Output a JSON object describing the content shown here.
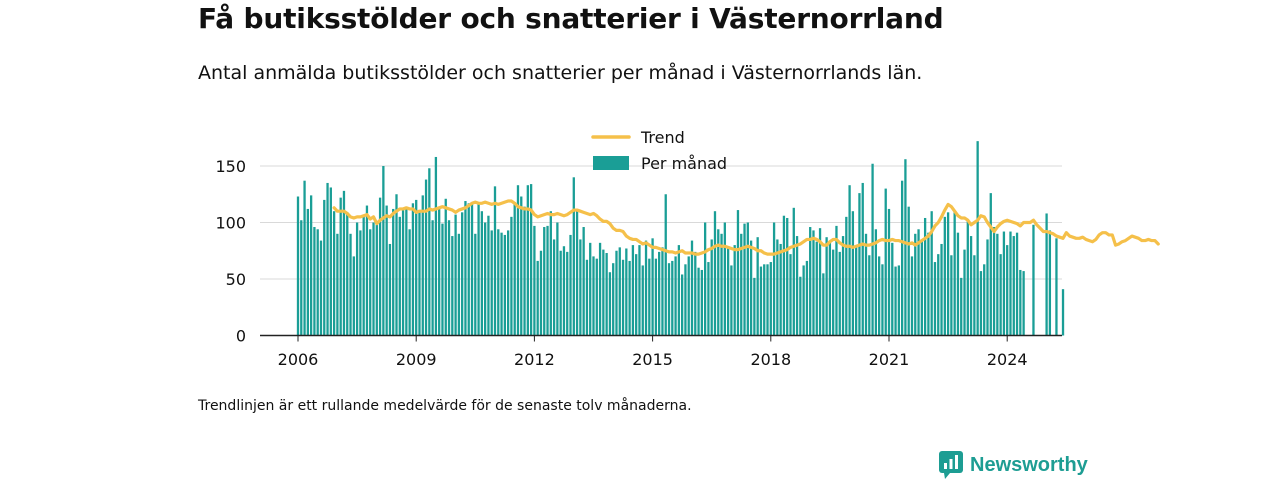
{
  "title": "Få butiksstölder och snatterier i Västernorrland",
  "subtitle": "Antal anmälda butiksstölder och snatterier per månad i Västernorrlands län.",
  "note": "Trendlinjen är ett rullande medelvärde för de senaste tolv månaderna.",
  "brand": "Newsworthy",
  "colors": {
    "bars": "#1a9e96",
    "trend": "#f5c04a",
    "grid": "#d9d9d9",
    "axis": "#222222",
    "brand": "#1d9d93"
  },
  "chart_data": {
    "type": "bar",
    "title": "Få butiksstölder och snatterier i Västernorrland",
    "start": "2006-01",
    "ylim": [
      0,
      175
    ],
    "yticks": [
      0,
      50,
      100,
      150
    ],
    "xticks": [
      "2006",
      "2009",
      "2012",
      "2015",
      "2018",
      "2021",
      "2024"
    ],
    "grid": true,
    "legend": "top-center",
    "series": [
      {
        "name": "Per månad",
        "values": [
          123,
          102,
          137,
          112,
          124,
          96,
          94,
          84,
          120,
          135,
          131,
          110,
          90,
          122,
          128,
          109,
          90,
          70,
          100,
          93,
          105,
          115,
          94,
          100,
          98,
          122,
          150,
          115,
          81,
          112,
          125,
          105,
          111,
          112,
          94,
          117,
          120,
          109,
          124,
          138,
          148,
          102,
          158,
          112,
          99,
          121,
          102,
          88,
          107,
          90,
          109,
          119,
          117,
          118,
          90,
          118,
          110,
          100,
          106,
          93,
          132,
          94,
          91,
          89,
          93,
          105,
          118,
          133,
          123,
          114,
          133,
          134,
          97,
          66,
          75,
          96,
          97,
          110,
          85,
          100,
          75,
          79,
          74,
          89,
          140,
          110,
          85,
          96,
          67,
          82,
          70,
          68,
          82,
          76,
          73,
          56,
          64,
          75,
          78,
          67,
          77,
          66,
          80,
          72,
          80,
          62,
          84,
          68,
          86,
          68,
          74,
          78,
          125,
          64,
          66,
          70,
          80,
          54,
          63,
          70,
          84,
          74,
          60,
          58,
          100,
          65,
          85,
          110,
          94,
          90,
          100,
          79,
          62,
          80,
          111,
          90,
          99,
          100,
          84,
          51,
          87,
          61,
          63,
          63,
          65,
          100,
          85,
          81,
          106,
          104,
          72,
          113,
          88,
          52,
          62,
          66,
          96,
          93,
          83,
          95,
          55,
          87,
          84,
          76,
          97,
          74,
          88,
          105,
          133,
          110,
          80,
          126,
          135,
          90,
          71,
          152,
          94,
          70,
          63,
          130,
          112,
          82,
          61,
          62,
          137,
          156,
          114,
          70,
          90,
          94,
          85,
          104,
          91,
          110,
          65,
          72,
          81,
          105,
          109,
          71,
          110,
          91,
          51,
          76,
          102,
          88,
          71,
          172,
          57,
          63,
          85,
          126,
          96,
          90,
          72,
          92,
          80,
          92,
          88,
          91,
          58,
          57,
          0,
          0,
          98,
          0,
          0,
          0,
          108,
          93,
          0,
          86,
          0,
          41
        ],
        "missing_value_note": ""
      },
      {
        "name": "Trend",
        "values": [
          null,
          null,
          null,
          null,
          null,
          null,
          null,
          null,
          null,
          null,
          null,
          113,
          110,
          110,
          110,
          108,
          105,
          104,
          105,
          105,
          106,
          107,
          103,
          105,
          99,
          102,
          104,
          106,
          105,
          108,
          110,
          112,
          112,
          113,
          112,
          112,
          109,
          110,
          110,
          110,
          112,
          111,
          112,
          113,
          114,
          113,
          112,
          111,
          109,
          111,
          112,
          113,
          115,
          117,
          118,
          117,
          117,
          118,
          117,
          116,
          117,
          116,
          117,
          118,
          119,
          119,
          117,
          114,
          113,
          112,
          112,
          111,
          107,
          105,
          106,
          107,
          108,
          107,
          107,
          108,
          107,
          106,
          107,
          109,
          111,
          111,
          110,
          109,
          108,
          107,
          108,
          106,
          103,
          101,
          101,
          99,
          95,
          93,
          93,
          92,
          88,
          86,
          85,
          85,
          83,
          81,
          82,
          80,
          78,
          78,
          77,
          76,
          75,
          74,
          74,
          73,
          74,
          75,
          73,
          73,
          73,
          72,
          72,
          73,
          74,
          76,
          77,
          79,
          80,
          79,
          79,
          78,
          77,
          76,
          76,
          77,
          78,
          79,
          78,
          77,
          75,
          75,
          73,
          72,
          72,
          72,
          73,
          74,
          75,
          76,
          78,
          79,
          80,
          81,
          83,
          85,
          85,
          86,
          85,
          83,
          80,
          80,
          83,
          85,
          85,
          82,
          80,
          79,
          79,
          78,
          79,
          80,
          81,
          80,
          80,
          81,
          82,
          84,
          85,
          84,
          84,
          85,
          84,
          84,
          83,
          82,
          81,
          82,
          80,
          82,
          84,
          86,
          88,
          92,
          97,
          100,
          105,
          111,
          116,
          114,
          110,
          106,
          104,
          104,
          102,
          98,
          100,
          102,
          106,
          105,
          100,
          96,
          92,
          96,
          99,
          101,
          102,
          101,
          100,
          99,
          97,
          100,
          100,
          100,
          102,
          98,
          95,
          92,
          92,
          91,
          90,
          88,
          87,
          86,
          91,
          88,
          87,
          86,
          86,
          87,
          85,
          84,
          83,
          85,
          89,
          91,
          91,
          89,
          89,
          80,
          81,
          83,
          84,
          86,
          88,
          87,
          86,
          84,
          84,
          85,
          84,
          84,
          81
        ]
      }
    ]
  }
}
